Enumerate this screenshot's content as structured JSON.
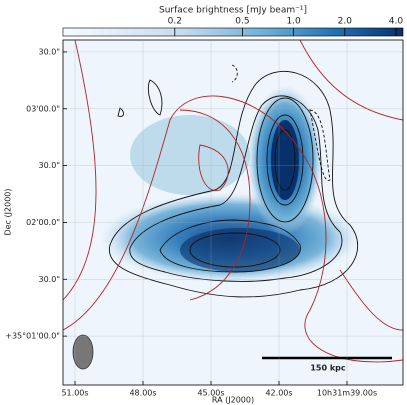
{
  "chart_data": {
    "type": "image",
    "colorbar_label": "Surface brightness [mJy beam⁻¹]",
    "clim": [
      0.044,
      4.4
    ],
    "clog": true,
    "cticks": [
      0.2,
      0.5,
      {
        "value": 1,
        "label": "1.0"
      },
      {
        "value": 2,
        "label": "2.0"
      },
      {
        "value": 4,
        "label": "4.0"
      }
    ],
    "xlabel": "RA (J2000)",
    "ylabel": "Dec (J2000)",
    "xlim": [
      51.53,
      36.53
    ],
    "xticks": [
      {
        "value": 51,
        "label": "51.00s"
      },
      {
        "value": 48,
        "label": "48.00s"
      },
      {
        "value": 45,
        "label": "45.00s"
      },
      {
        "value": 42,
        "label": "42.00s"
      },
      {
        "value": 39,
        "label": "10h31m39.00s"
      }
    ],
    "ylim": [
      34.2,
      216.3
    ],
    "yticks": [
      {
        "value": 210,
        "label": "30.0\""
      },
      {
        "value": 180,
        "label": "03'00.0\""
      },
      {
        "value": 150,
        "label": "30.0\""
      },
      {
        "value": 120,
        "label": "02'00.0\""
      },
      {
        "value": 90,
        "label": "30.0\""
      },
      {
        "value": 60,
        "label": "+35°01'00.0\""
      }
    ],
    "grid": true,
    "scalebar_label": "150 kpc"
  }
}
